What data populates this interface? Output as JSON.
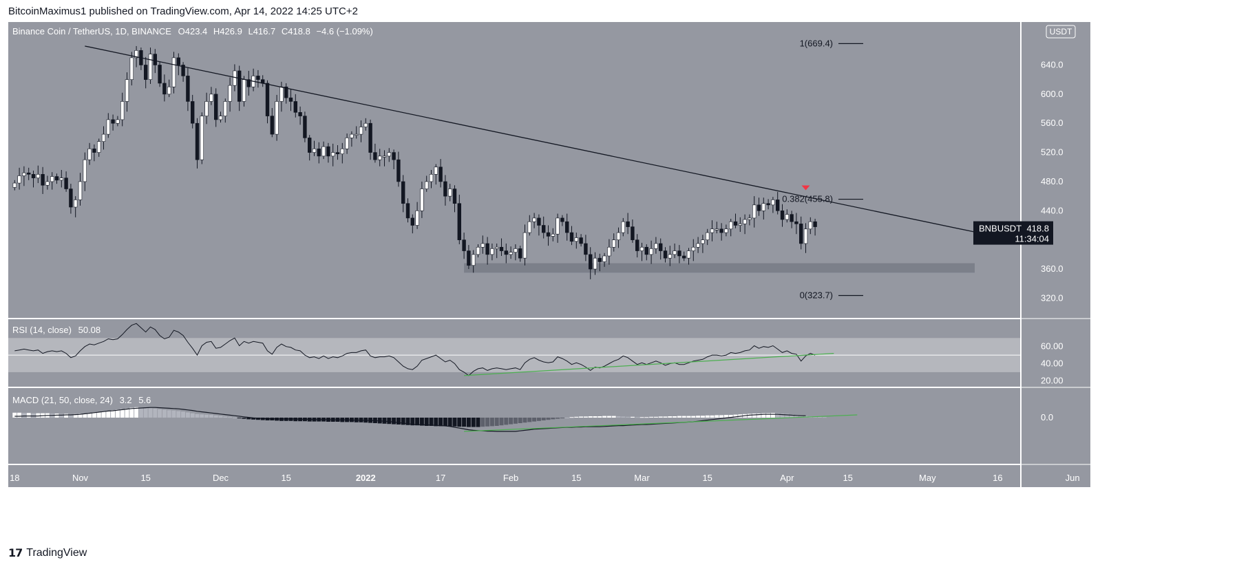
{
  "publisher_line": "BitcoinMaximus1 published on TradingView.com, Apr 14, 2022 14:25 UTC+2",
  "footer_brand": "TradingView",
  "colors": {
    "panel_bg": "#9598a1",
    "rsi_band": "#b5b7bd",
    "candle_up": "#ffffff",
    "candle_down": "#131722",
    "trendline": "#131722",
    "support_zone": "#787b86",
    "green_line": "#4caf50",
    "red_marker": "#f23645",
    "price_label_bg": "#131722"
  },
  "header": {
    "symbol": "Binance Coin / TetherUS, 1D, BINANCE",
    "o_label": "O",
    "o_val": "423.4",
    "h_label": "H",
    "h_val": "426.9",
    "l_label": "L",
    "l_val": "416.7",
    "c_label": "C",
    "c_val": "418.8",
    "change": "−4.6 (−1.09%)"
  },
  "currency_badge": "USDT",
  "last_price_label": {
    "symbol": "BNBUSDT",
    "price": "418.8",
    "countdown": "11:34:04"
  },
  "rsi_header": {
    "name": "RSI (14, close)",
    "value": "50.08"
  },
  "macd_header": {
    "name": "MACD (21, 50, close, 24)",
    "v1": "3.2",
    "v2": "5.6"
  },
  "fib_labels": [
    {
      "text": "1(669.4)",
      "price": 669.4
    },
    {
      "text": "0.382(455.8)",
      "price": 455.8
    },
    {
      "text": "0(323.7)",
      "price": 323.7
    }
  ],
  "chart_data": {
    "type": "candlestick",
    "title": "Binance Coin / TetherUS, 1D, BINANCE",
    "price_axis": {
      "range": [
        293,
        699
      ],
      "ticks": [
        {
          "v": 640,
          "t": "640.0"
        },
        {
          "v": 600,
          "t": "600.0"
        },
        {
          "v": 560,
          "t": "560.0"
        },
        {
          "v": 520,
          "t": "520.0"
        },
        {
          "v": 480,
          "t": "480.0"
        },
        {
          "v": 440,
          "t": "440.0"
        },
        {
          "v": 360,
          "t": "360.0"
        },
        {
          "v": 320,
          "t": "320.0"
        }
      ]
    },
    "x_axis": {
      "start_date": "2021-10-17",
      "ticks": [
        {
          "day": 1,
          "t": "18",
          "bold": false
        },
        {
          "day": 15,
          "t": "Nov",
          "bold": false
        },
        {
          "day": 29,
          "t": "15",
          "bold": false
        },
        {
          "day": 45,
          "t": "Dec",
          "bold": false
        },
        {
          "day": 59,
          "t": "15",
          "bold": false
        },
        {
          "day": 76,
          "t": "2022",
          "bold": true
        },
        {
          "day": 92,
          "t": "17",
          "bold": false
        },
        {
          "day": 107,
          "t": "Feb",
          "bold": false
        },
        {
          "day": 121,
          "t": "15",
          "bold": false
        },
        {
          "day": 135,
          "t": "Mar",
          "bold": false
        },
        {
          "day": 149,
          "t": "15",
          "bold": false
        },
        {
          "day": 166,
          "t": "Apr",
          "bold": false
        },
        {
          "day": 179,
          "t": "15",
          "bold": false
        },
        {
          "day": 196,
          "t": "May",
          "bold": false
        },
        {
          "day": 211,
          "t": "16",
          "bold": false
        },
        {
          "day": 227,
          "t": "Jun",
          "bold": false
        }
      ]
    },
    "candles_close": [
      478,
      488,
      492,
      490,
      485,
      490,
      475,
      480,
      487,
      482,
      485,
      470,
      445,
      455,
      480,
      510,
      525,
      520,
      535,
      545,
      565,
      560,
      565,
      590,
      620,
      650,
      660,
      640,
      620,
      655,
      640,
      615,
      600,
      610,
      650,
      640,
      625,
      590,
      560,
      510,
      570,
      590,
      600,
      565,
      570,
      590,
      612,
      632,
      590,
      620,
      610,
      625,
      620,
      615,
      570,
      545,
      590,
      610,
      595,
      590,
      575,
      570,
      540,
      520,
      525,
      515,
      528,
      515,
      520,
      518,
      525,
      540,
      545,
      545,
      555,
      560,
      520,
      510,
      515,
      515,
      520,
      510,
      480,
      450,
      430,
      420,
      440,
      470,
      480,
      490,
      500,
      480,
      460,
      470,
      450,
      400,
      385,
      365,
      380,
      390,
      395,
      380,
      388,
      390,
      385,
      380,
      383,
      388,
      375,
      410,
      425,
      430,
      420,
      410,
      405,
      408,
      430,
      425,
      410,
      398,
      403,
      395,
      380,
      360,
      375,
      370,
      378,
      390,
      400,
      410,
      425,
      418,
      400,
      385,
      390,
      380,
      388,
      395,
      385,
      375,
      380,
      385,
      378,
      375,
      385,
      390,
      395,
      400,
      410,
      415,
      415,
      410,
      415,
      425,
      420,
      422,
      428,
      430,
      448,
      440,
      450,
      448,
      455,
      440,
      428,
      435,
      425,
      422,
      395,
      415,
      425,
      418
    ],
    "support_zone": [
      355,
      368
    ],
    "trendline": {
      "from": {
        "day": 16,
        "price": 666
      },
      "to": {
        "day": 206,
        "price": 411
      }
    },
    "red_marker": {
      "day": 170,
      "price": 471
    },
    "rsi": {
      "range": [
        13,
        92
      ],
      "ticks": [
        {
          "v": 60,
          "t": "60.00"
        },
        {
          "v": 40,
          "t": "40.00"
        },
        {
          "v": 20,
          "t": "20.00"
        }
      ],
      "band": [
        30,
        70
      ],
      "mid": 50,
      "values": [
        55,
        56,
        57,
        56,
        55,
        56,
        52,
        54,
        55,
        54,
        55,
        52,
        47,
        49,
        55,
        60,
        63,
        62,
        64,
        66,
        69,
        68,
        69,
        74,
        80,
        85,
        87,
        82,
        77,
        83,
        80,
        73,
        69,
        71,
        79,
        77,
        73,
        65,
        58,
        50,
        61,
        65,
        66,
        58,
        59,
        63,
        67,
        70,
        61,
        66,
        64,
        66,
        65,
        64,
        55,
        51,
        59,
        63,
        60,
        59,
        56,
        55,
        50,
        47,
        48,
        46,
        49,
        46,
        48,
        47,
        49,
        52,
        53,
        53,
        55,
        56,
        49,
        47,
        48,
        48,
        49,
        47,
        42,
        37,
        34,
        33,
        37,
        44,
        46,
        48,
        50,
        46,
        42,
        44,
        40,
        33,
        30,
        26,
        31,
        34,
        35,
        32,
        34,
        35,
        34,
        33,
        34,
        35,
        33,
        41,
        45,
        47,
        44,
        42,
        41,
        42,
        48,
        46,
        43,
        39,
        41,
        39,
        36,
        32,
        36,
        35,
        37,
        40,
        43,
        45,
        49,
        47,
        43,
        39,
        41,
        39,
        41,
        43,
        41,
        38,
        40,
        41,
        39,
        39,
        41,
        43,
        44,
        45,
        48,
        50,
        50,
        49,
        50,
        53,
        52,
        53,
        55,
        56,
        61,
        58,
        60,
        59,
        61,
        57,
        53,
        55,
        52,
        51,
        43,
        49,
        52,
        50
      ],
      "green_line": {
        "from": {
          "day": 97,
          "v": 26
        },
        "to": {
          "day": 176,
          "v": 52
        }
      }
    },
    "macd": {
      "range": [
        -1,
        1
      ],
      "ticks": [
        {
          "v": 0,
          "t": "0.0"
        }
      ],
      "hist_unit": "relative",
      "line_values": [
        0.05,
        0.05,
        0.06,
        0.06,
        0.06,
        0.06,
        0.07,
        0.08,
        0.08,
        0.09,
        0.09,
        0.1,
        0.1,
        0.11,
        0.12,
        0.14,
        0.16,
        0.18,
        0.2,
        0.22,
        0.24,
        0.25,
        0.27,
        0.29,
        0.31,
        0.33,
        0.34,
        0.35,
        0.36,
        0.37,
        0.37,
        0.36,
        0.35,
        0.34,
        0.33,
        0.32,
        0.3,
        0.28,
        0.26,
        0.23,
        0.21,
        0.19,
        0.17,
        0.15,
        0.13,
        0.11,
        0.09,
        0.07,
        0.05,
        0.03,
        0.01,
        -0.01,
        -0.02,
        -0.03,
        -0.04,
        -0.04,
        -0.05,
        -0.05,
        -0.05,
        -0.05,
        -0.05,
        -0.06,
        -0.06,
        -0.06,
        -0.07,
        -0.07,
        -0.07,
        -0.07,
        -0.08,
        -0.08,
        -0.08,
        -0.08,
        -0.09,
        -0.09,
        -0.09,
        -0.1,
        -0.1,
        -0.11,
        -0.12,
        -0.13,
        -0.14,
        -0.16,
        -0.18,
        -0.2,
        -0.22,
        -0.24,
        -0.25,
        -0.26,
        -0.26,
        -0.27,
        -0.28,
        -0.29,
        -0.3,
        -0.32,
        -0.35,
        -0.38,
        -0.41,
        -0.44,
        -0.46,
        -0.47,
        -0.48,
        -0.49,
        -0.49,
        -0.5,
        -0.5,
        -0.5,
        -0.5,
        -0.5,
        -0.48,
        -0.46,
        -0.44,
        -0.42,
        -0.41,
        -0.4,
        -0.39,
        -0.38,
        -0.37,
        -0.36,
        -0.35,
        -0.35,
        -0.34,
        -0.34,
        -0.33,
        -0.33,
        -0.33,
        -0.33,
        -0.32,
        -0.31,
        -0.3,
        -0.29,
        -0.29,
        -0.28,
        -0.27,
        -0.26,
        -0.25,
        -0.25,
        -0.24,
        -0.23,
        -0.22,
        -0.21,
        -0.2,
        -0.19,
        -0.18,
        -0.17,
        -0.16,
        -0.15,
        -0.13,
        -0.11,
        -0.09,
        -0.07,
        -0.05,
        -0.03,
        -0.01,
        0.01,
        0.03,
        0.05,
        0.07,
        0.09,
        0.1,
        0.11,
        0.12,
        0.12,
        0.12,
        0.12,
        0.11,
        0.1,
        0.09,
        0.08,
        0.07,
        0.07
      ],
      "hist_values": [
        0.18,
        0.18,
        0.17,
        0.17,
        0.16,
        0.16,
        0.16,
        0.16,
        0.15,
        0.15,
        0.14,
        0.14,
        0.13,
        0.13,
        0.14,
        0.15,
        0.17,
        0.19,
        0.21,
        0.23,
        0.25,
        0.27,
        0.29,
        0.31,
        0.33,
        0.36,
        0.38,
        0.37,
        0.35,
        0.34,
        0.33,
        0.31,
        0.29,
        0.27,
        0.26,
        0.24,
        0.22,
        0.19,
        0.16,
        0.13,
        0.12,
        0.11,
        0.1,
        0.08,
        0.06,
        0.04,
        0.02,
        0.0,
        -0.02,
        -0.04,
        -0.06,
        -0.07,
        -0.08,
        -0.09,
        -0.1,
        -0.1,
        -0.11,
        -0.12,
        -0.12,
        -0.12,
        -0.13,
        -0.13,
        -0.13,
        -0.14,
        -0.14,
        -0.14,
        -0.14,
        -0.15,
        -0.15,
        -0.15,
        -0.16,
        -0.16,
        -0.16,
        -0.17,
        -0.17,
        -0.18,
        -0.19,
        -0.2,
        -0.21,
        -0.22,
        -0.23,
        -0.24,
        -0.25,
        -0.26,
        -0.27,
        -0.28,
        -0.28,
        -0.29,
        -0.3,
        -0.3,
        -0.31,
        -0.31,
        -0.31,
        -0.32,
        -0.32,
        -0.33,
        -0.33,
        -0.34,
        -0.34,
        -0.34,
        -0.33,
        -0.32,
        -0.31,
        -0.3,
        -0.28,
        -0.26,
        -0.24,
        -0.22,
        -0.2,
        -0.18,
        -0.16,
        -0.14,
        -0.12,
        -0.1,
        -0.08,
        -0.06,
        -0.04,
        -0.02,
        0.0,
        0.02,
        0.03,
        0.04,
        0.04,
        0.05,
        0.05,
        0.05,
        0.06,
        0.06,
        0.06,
        0.05,
        0.04,
        0.03,
        0.03,
        0.02,
        0.02,
        0.02,
        0.03,
        0.03,
        0.04,
        0.04,
        0.05,
        0.05,
        0.06,
        0.06,
        0.06,
        0.06,
        0.07,
        0.07,
        0.08,
        0.08,
        0.09,
        0.09,
        0.1,
        0.1,
        0.11,
        0.12,
        0.13,
        0.14,
        0.15,
        0.15,
        0.16,
        0.16,
        0.17,
        0.16,
        0.15,
        0.14,
        0.12,
        0.1,
        0.08,
        0.06,
        0.05,
        0.04,
        0.03,
        0.02
      ],
      "green_line": {
        "from": {
          "day": 97,
          "v": -0.5
        },
        "to": {
          "day": 181,
          "v": 0.1
        }
      }
    }
  }
}
